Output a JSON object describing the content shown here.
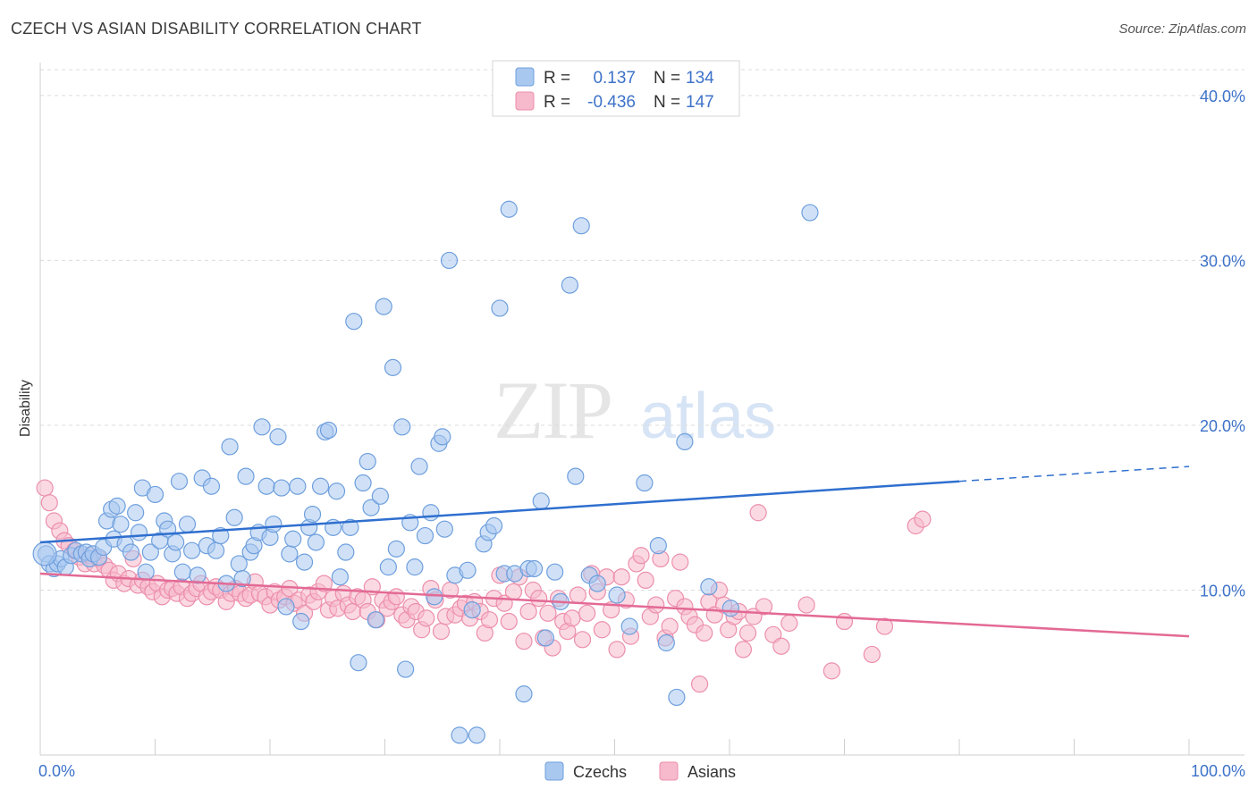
{
  "header": {
    "title": "CZECH VS ASIAN DISABILITY CORRELATION CHART",
    "source": "Source: ZipAtlas.com"
  },
  "watermark": {
    "part1": "ZIP",
    "part2": "atlas"
  },
  "colors": {
    "czech_fill": "#a9c8f0",
    "czech_stroke": "#6e9fdd",
    "czech_line": "#2f6fcf",
    "asian_fill": "#f7b9cc",
    "asian_stroke": "#ec8fac",
    "asian_line": "#e36a95",
    "axis_text": "#3d72c9",
    "grid": "#dcdcdc"
  },
  "legend": {
    "rows": [
      {
        "r_label": "R =",
        "r_value": "0.137",
        "n_label": "N =",
        "n_value": "134"
      },
      {
        "r_label": "R =",
        "r_value": "-0.436",
        "n_label": "N =",
        "n_value": "147"
      }
    ],
    "bottom": [
      "Czechs",
      "Asians"
    ]
  },
  "chart_data": {
    "type": "scatter",
    "title": "CZECH VS ASIAN DISABILITY CORRELATION CHART",
    "ylabel": "Disability",
    "xlabel": "",
    "xlim": [
      0,
      100
    ],
    "ylim": [
      0,
      42
    ],
    "x_tick_labels": [
      "0.0%",
      "100.0%"
    ],
    "y_ticks": [
      10,
      20,
      30,
      40
    ],
    "y_tick_labels": [
      "10.0%",
      "20.0%",
      "30.0%",
      "40.0%"
    ],
    "grid": true,
    "legend_position": "top-center",
    "series": [
      {
        "name": "Czechs",
        "r": 0.137,
        "n": 134,
        "trend": {
          "x": [
            0,
            80
          ],
          "y": [
            12.9,
            16.6
          ],
          "dashed_to": [
            100,
            17.5
          ]
        },
        "points": [
          [
            0.5,
            12.2
          ],
          [
            0.8,
            11.6
          ],
          [
            1.2,
            11.3
          ],
          [
            1.5,
            11.6
          ],
          [
            1.8,
            11.9
          ],
          [
            2.2,
            11.4
          ],
          [
            2.7,
            12.1
          ],
          [
            3.1,
            12.4
          ],
          [
            3.6,
            12.2
          ],
          [
            4.0,
            12.3
          ],
          [
            4.3,
            11.9
          ],
          [
            4.6,
            12.2
          ],
          [
            5.1,
            12.0
          ],
          [
            5.5,
            12.6
          ],
          [
            5.8,
            14.2
          ],
          [
            6.2,
            14.9
          ],
          [
            6.4,
            13.1
          ],
          [
            6.7,
            15.1
          ],
          [
            7.0,
            14.0
          ],
          [
            7.4,
            12.8
          ],
          [
            7.9,
            12.3
          ],
          [
            8.3,
            14.7
          ],
          [
            8.6,
            13.5
          ],
          [
            8.9,
            16.2
          ],
          [
            9.2,
            11.1
          ],
          [
            9.6,
            12.3
          ],
          [
            10.0,
            15.8
          ],
          [
            10.4,
            13.0
          ],
          [
            10.8,
            14.2
          ],
          [
            11.1,
            13.7
          ],
          [
            11.5,
            12.2
          ],
          [
            11.8,
            12.9
          ],
          [
            12.1,
            16.6
          ],
          [
            12.4,
            11.1
          ],
          [
            12.8,
            14.0
          ],
          [
            13.2,
            12.4
          ],
          [
            13.7,
            10.9
          ],
          [
            14.1,
            16.8
          ],
          [
            14.5,
            12.7
          ],
          [
            14.9,
            16.3
          ],
          [
            15.3,
            12.4
          ],
          [
            15.7,
            13.3
          ],
          [
            16.2,
            10.4
          ],
          [
            16.5,
            18.7
          ],
          [
            16.9,
            14.4
          ],
          [
            17.3,
            11.6
          ],
          [
            17.6,
            10.7
          ],
          [
            17.9,
            16.9
          ],
          [
            18.3,
            12.3
          ],
          [
            18.6,
            12.7
          ],
          [
            19.0,
            13.5
          ],
          [
            19.3,
            19.9
          ],
          [
            19.7,
            16.3
          ],
          [
            20.0,
            13.2
          ],
          [
            20.3,
            14.0
          ],
          [
            20.7,
            19.3
          ],
          [
            21.0,
            16.2
          ],
          [
            21.4,
            9.0
          ],
          [
            21.7,
            12.2
          ],
          [
            22.0,
            13.1
          ],
          [
            22.4,
            16.3
          ],
          [
            22.7,
            8.1
          ],
          [
            23.0,
            11.7
          ],
          [
            23.4,
            13.8
          ],
          [
            23.7,
            14.6
          ],
          [
            24.0,
            12.9
          ],
          [
            24.4,
            16.3
          ],
          [
            24.8,
            19.6
          ],
          [
            25.1,
            19.7
          ],
          [
            25.5,
            13.8
          ],
          [
            25.8,
            16.0
          ],
          [
            26.1,
            10.8
          ],
          [
            26.6,
            12.3
          ],
          [
            27.0,
            13.8
          ],
          [
            27.3,
            26.3
          ],
          [
            27.7,
            5.6
          ],
          [
            28.1,
            16.5
          ],
          [
            28.5,
            17.8
          ],
          [
            28.8,
            15.0
          ],
          [
            29.2,
            8.2
          ],
          [
            29.6,
            15.7
          ],
          [
            29.9,
            27.2
          ],
          [
            30.3,
            11.4
          ],
          [
            30.7,
            23.5
          ],
          [
            31.0,
            12.5
          ],
          [
            31.5,
            19.9
          ],
          [
            31.8,
            5.2
          ],
          [
            32.2,
            14.1
          ],
          [
            32.6,
            11.4
          ],
          [
            33.0,
            17.5
          ],
          [
            33.5,
            13.3
          ],
          [
            34.0,
            14.7
          ],
          [
            34.3,
            9.6
          ],
          [
            34.7,
            18.9
          ],
          [
            35.0,
            19.3
          ],
          [
            35.2,
            13.7
          ],
          [
            35.6,
            30.0
          ],
          [
            36.1,
            10.9
          ],
          [
            36.5,
            1.2
          ],
          [
            37.2,
            11.2
          ],
          [
            37.6,
            8.8
          ],
          [
            38.0,
            1.2
          ],
          [
            38.6,
            12.8
          ],
          [
            39.0,
            13.5
          ],
          [
            39.5,
            13.9
          ],
          [
            40.0,
            27.1
          ],
          [
            40.4,
            11.0
          ],
          [
            40.8,
            33.1
          ],
          [
            41.3,
            11.0
          ],
          [
            42.1,
            3.7
          ],
          [
            42.5,
            11.3
          ],
          [
            43.0,
            11.3
          ],
          [
            43.6,
            15.4
          ],
          [
            44.0,
            7.1
          ],
          [
            44.8,
            11.1
          ],
          [
            45.3,
            9.3
          ],
          [
            46.1,
            28.5
          ],
          [
            46.6,
            16.9
          ],
          [
            47.1,
            32.1
          ],
          [
            47.8,
            10.9
          ],
          [
            48.5,
            10.4
          ],
          [
            50.2,
            9.7
          ],
          [
            51.3,
            7.8
          ],
          [
            52.6,
            16.5
          ],
          [
            53.8,
            12.7
          ],
          [
            54.5,
            6.8
          ],
          [
            55.4,
            3.5
          ],
          [
            56.1,
            19.0
          ],
          [
            67.0,
            32.9
          ],
          [
            58.2,
            10.2
          ],
          [
            60.1,
            8.9
          ]
        ]
      },
      {
        "name": "Asians",
        "r": -0.436,
        "n": 147,
        "trend": {
          "x": [
            0,
            100
          ],
          "y": [
            11.0,
            7.2
          ]
        },
        "points": [
          [
            0.4,
            16.2
          ],
          [
            0.8,
            15.3
          ],
          [
            1.2,
            14.2
          ],
          [
            1.7,
            13.6
          ],
          [
            2.1,
            13.0
          ],
          [
            2.5,
            12.7
          ],
          [
            3.0,
            12.4
          ],
          [
            3.4,
            12.0
          ],
          [
            3.9,
            11.6
          ],
          [
            4.3,
            12.1
          ],
          [
            4.7,
            11.6
          ],
          [
            5.1,
            11.9
          ],
          [
            5.6,
            11.5
          ],
          [
            6.0,
            11.2
          ],
          [
            6.4,
            10.6
          ],
          [
            6.8,
            11.0
          ],
          [
            7.3,
            10.4
          ],
          [
            7.7,
            10.7
          ],
          [
            8.1,
            11.9
          ],
          [
            8.5,
            10.3
          ],
          [
            8.9,
            10.6
          ],
          [
            9.4,
            10.2
          ],
          [
            9.8,
            9.9
          ],
          [
            10.2,
            10.4
          ],
          [
            10.6,
            9.6
          ],
          [
            11.1,
            10.0
          ],
          [
            11.5,
            10.1
          ],
          [
            11.9,
            9.8
          ],
          [
            12.3,
            10.2
          ],
          [
            12.8,
            9.5
          ],
          [
            13.2,
            9.8
          ],
          [
            13.6,
            10.1
          ],
          [
            14.0,
            10.4
          ],
          [
            14.5,
            9.6
          ],
          [
            14.9,
            9.9
          ],
          [
            15.3,
            10.2
          ],
          [
            15.7,
            10.0
          ],
          [
            16.2,
            9.3
          ],
          [
            16.6,
            9.8
          ],
          [
            17.0,
            10.1
          ],
          [
            17.4,
            9.8
          ],
          [
            17.9,
            9.5
          ],
          [
            18.3,
            9.7
          ],
          [
            18.7,
            10.5
          ],
          [
            19.1,
            9.8
          ],
          [
            19.6,
            9.6
          ],
          [
            20.0,
            9.1
          ],
          [
            20.4,
            9.9
          ],
          [
            20.8,
            9.4
          ],
          [
            21.3,
            9.6
          ],
          [
            21.7,
            10.1
          ],
          [
            22.1,
            9.2
          ],
          [
            22.5,
            9.4
          ],
          [
            23.0,
            8.6
          ],
          [
            23.4,
            9.7
          ],
          [
            23.8,
            9.3
          ],
          [
            24.2,
            9.9
          ],
          [
            24.7,
            10.4
          ],
          [
            25.1,
            8.8
          ],
          [
            25.5,
            9.5
          ],
          [
            25.9,
            8.9
          ],
          [
            26.4,
            9.8
          ],
          [
            26.8,
            9.1
          ],
          [
            27.2,
            8.7
          ],
          [
            27.6,
            9.6
          ],
          [
            28.1,
            9.4
          ],
          [
            28.5,
            8.7
          ],
          [
            28.9,
            10.2
          ],
          [
            29.3,
            8.2
          ],
          [
            29.8,
            9.4
          ],
          [
            30.2,
            8.9
          ],
          [
            30.6,
            9.3
          ],
          [
            31.0,
            9.6
          ],
          [
            31.5,
            8.5
          ],
          [
            31.9,
            8.2
          ],
          [
            32.3,
            9.0
          ],
          [
            32.7,
            8.7
          ],
          [
            33.2,
            7.6
          ],
          [
            33.6,
            8.3
          ],
          [
            34.0,
            10.1
          ],
          [
            34.4,
            9.4
          ],
          [
            34.9,
            7.5
          ],
          [
            35.3,
            8.4
          ],
          [
            35.7,
            10.0
          ],
          [
            36.1,
            8.5
          ],
          [
            36.6,
            8.9
          ],
          [
            37.0,
            9.2
          ],
          [
            37.4,
            8.3
          ],
          [
            37.8,
            9.3
          ],
          [
            38.3,
            8.7
          ],
          [
            38.7,
            7.4
          ],
          [
            39.1,
            8.2
          ],
          [
            39.5,
            9.5
          ],
          [
            40.0,
            10.9
          ],
          [
            40.4,
            9.2
          ],
          [
            40.8,
            8.1
          ],
          [
            41.2,
            9.9
          ],
          [
            41.7,
            10.8
          ],
          [
            42.1,
            6.9
          ],
          [
            42.5,
            8.7
          ],
          [
            42.9,
            10.0
          ],
          [
            43.4,
            9.5
          ],
          [
            43.8,
            7.1
          ],
          [
            44.2,
            8.6
          ],
          [
            44.6,
            6.5
          ],
          [
            45.1,
            9.5
          ],
          [
            45.5,
            8.1
          ],
          [
            45.9,
            7.5
          ],
          [
            46.3,
            8.3
          ],
          [
            46.8,
            9.7
          ],
          [
            47.2,
            7.0
          ],
          [
            47.6,
            8.6
          ],
          [
            48.0,
            11.0
          ],
          [
            48.5,
            9.9
          ],
          [
            48.9,
            7.6
          ],
          [
            49.3,
            10.8
          ],
          [
            49.7,
            8.8
          ],
          [
            50.2,
            6.4
          ],
          [
            50.6,
            10.8
          ],
          [
            51.0,
            9.4
          ],
          [
            51.4,
            7.2
          ],
          [
            51.9,
            11.6
          ],
          [
            52.3,
            12.1
          ],
          [
            52.7,
            10.6
          ],
          [
            53.1,
            8.4
          ],
          [
            53.6,
            9.1
          ],
          [
            54.0,
            11.9
          ],
          [
            54.4,
            7.1
          ],
          [
            54.8,
            7.8
          ],
          [
            55.3,
            9.5
          ],
          [
            55.7,
            11.7
          ],
          [
            56.1,
            9.0
          ],
          [
            56.5,
            8.4
          ],
          [
            57.0,
            7.9
          ],
          [
            57.4,
            4.3
          ],
          [
            57.8,
            7.4
          ],
          [
            58.2,
            9.3
          ],
          [
            58.7,
            8.5
          ],
          [
            59.1,
            10.0
          ],
          [
            59.5,
            9.1
          ],
          [
            59.9,
            7.6
          ],
          [
            60.4,
            8.4
          ],
          [
            60.8,
            8.7
          ],
          [
            61.2,
            6.4
          ],
          [
            61.6,
            7.4
          ],
          [
            62.1,
            8.4
          ],
          [
            62.5,
            14.7
          ],
          [
            63.0,
            9.0
          ],
          [
            63.8,
            7.3
          ],
          [
            64.5,
            6.6
          ],
          [
            65.2,
            8.0
          ],
          [
            66.7,
            9.1
          ],
          [
            68.9,
            5.1
          ],
          [
            70.0,
            8.1
          ],
          [
            72.4,
            6.1
          ],
          [
            73.5,
            7.8
          ],
          [
            76.2,
            13.9
          ],
          [
            76.8,
            14.3
          ]
        ]
      }
    ]
  }
}
